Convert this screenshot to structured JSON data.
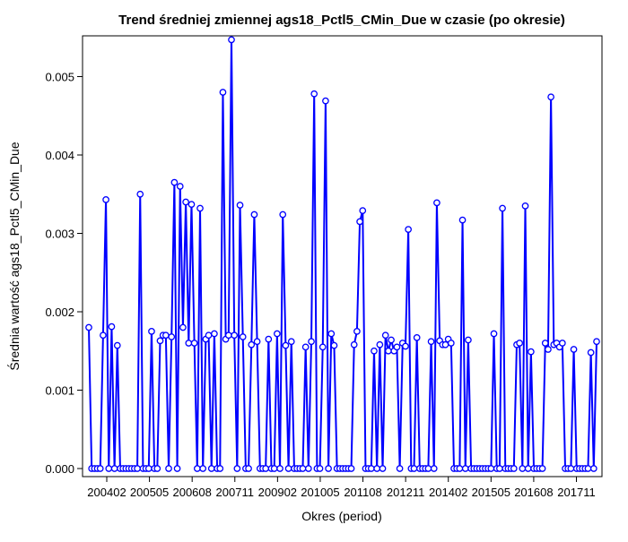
{
  "chart_data": {
    "type": "line",
    "title": "Trend średniej zmiennej ags18_Pctl5_CMin_Due w czasie (po okresie)",
    "xlabel": "Okres (period)",
    "ylabel": "Średnia wartość ags18_Pctl5_CMin_Due",
    "x_tick_labels": [
      "200402",
      "200505",
      "200608",
      "200711",
      "200902",
      "201005",
      "201108",
      "201211",
      "201402",
      "201505",
      "201608",
      "201711"
    ],
    "y_tick_labels": [
      "0.000",
      "0.001",
      "0.002",
      "0.003",
      "0.004",
      "0.005"
    ],
    "ylim": [
      0,
      0.0055
    ],
    "grid": false,
    "colors": {
      "series": "#0000ff",
      "axes": "#000000",
      "background": "#ffffff"
    },
    "series": [
      {
        "values": [
          0.0018,
          0,
          0,
          0,
          0,
          0.0017,
          0.00343,
          0,
          0.00181,
          0,
          0.00157,
          0,
          0,
          0,
          0,
          0,
          0,
          0,
          0.0035,
          0,
          0,
          0,
          0.00175,
          0,
          0,
          0.00163,
          0.0017,
          0.0017,
          0,
          0.00168,
          0.00365,
          0,
          0.0036,
          0.0018,
          0.0034,
          0.0016,
          0.00337,
          0.0016,
          0,
          0.00332,
          0,
          0.00165,
          0.0017,
          0,
          0.00172,
          0,
          0,
          0.0048,
          0.00165,
          0.0017,
          0.00547,
          0.0017,
          0,
          0.00336,
          0.00168,
          0,
          0,
          0.00158,
          0.00324,
          0.00162,
          0,
          0,
          0,
          0.00165,
          0,
          0,
          0.00172,
          0,
          0.00324,
          0.00157,
          0,
          0.00162,
          0,
          0,
          0,
          0,
          0.00155,
          0,
          0.00162,
          0.00478,
          0,
          0,
          0.00155,
          0.00469,
          0,
          0.00172,
          0.00157,
          0,
          0,
          0,
          0,
          0,
          0,
          0.00158,
          0.00175,
          0.00315,
          0.00329,
          0,
          0,
          0,
          0.0015,
          0,
          0.00158,
          0,
          0.0017,
          0.0015,
          0.00164,
          0.0015,
          0.00155,
          0,
          0.0016,
          0.00156,
          0.00305,
          0,
          0,
          0.00167,
          0,
          0,
          0,
          0,
          0.00162,
          0,
          0.00339,
          0.00163,
          0.00158,
          0.00158,
          0.00165,
          0.0016,
          0,
          0,
          0,
          0.00317,
          0,
          0.00164,
          0,
          0,
          0,
          0,
          0,
          0,
          0,
          0,
          0.00172,
          0,
          0,
          0.00332,
          0,
          0,
          0,
          0,
          0.00158,
          0.0016,
          0,
          0.00335,
          0,
          0.00149,
          0,
          0,
          0,
          0,
          0.0016,
          0.00152,
          0.00474,
          0.00158,
          0.0016,
          0.00155,
          0.0016,
          0,
          0,
          0,
          0.00152,
          0,
          0,
          0,
          0,
          0,
          0.00148,
          0,
          0.00162
        ]
      }
    ]
  }
}
